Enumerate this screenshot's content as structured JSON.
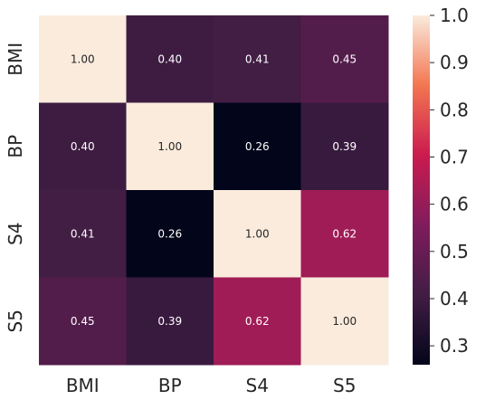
{
  "chart_data": {
    "type": "heatmap",
    "title": "",
    "xlabel": "",
    "ylabel": "",
    "x_categories": [
      "BMI",
      "BP",
      "S4",
      "S5"
    ],
    "y_categories": [
      "BMI",
      "BP",
      "S4",
      "S5"
    ],
    "values": [
      [
        1.0,
        0.4,
        0.41,
        0.45
      ],
      [
        0.4,
        1.0,
        0.26,
        0.39
      ],
      [
        0.41,
        0.26,
        1.0,
        0.62
      ],
      [
        0.45,
        0.39,
        0.62,
        1.0
      ]
    ],
    "cell_labels": [
      [
        "1.00",
        "0.40",
        "0.41",
        "0.45"
      ],
      [
        "0.40",
        "1.00",
        "0.26",
        "0.39"
      ],
      [
        "0.41",
        "0.26",
        "1.00",
        "0.62"
      ],
      [
        "0.45",
        "0.39",
        "0.62",
        "1.00"
      ]
    ],
    "value_range": [
      0.26,
      1.0
    ],
    "colormap": "rocket",
    "colorbar": {
      "position": "right",
      "ticks": [
        "0.3",
        "0.4",
        "0.5",
        "0.6",
        "0.7",
        "0.8",
        "0.9",
        "1.0"
      ]
    },
    "grid": false
  }
}
